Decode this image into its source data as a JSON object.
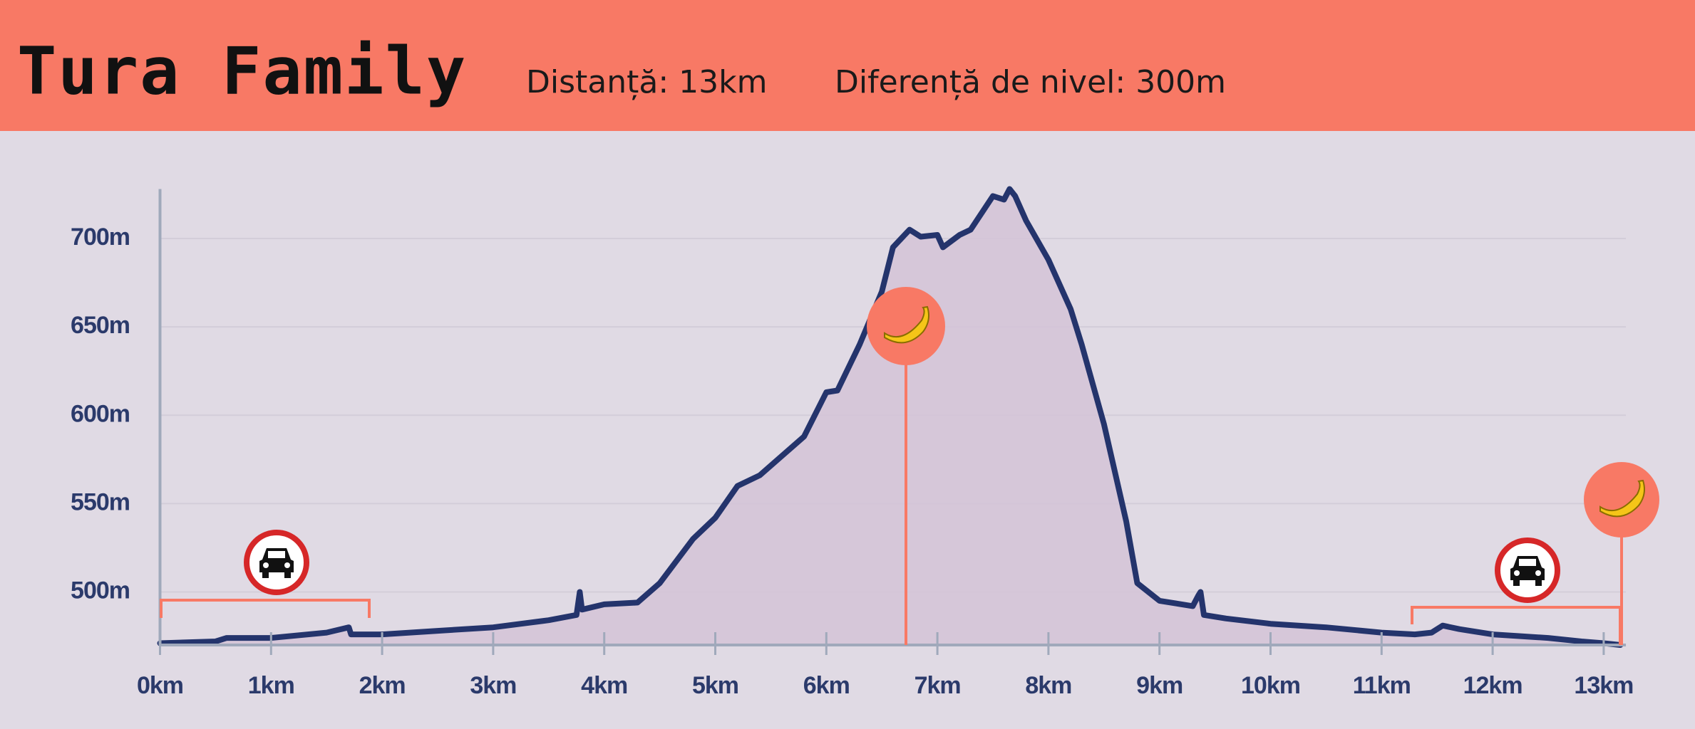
{
  "chart_data": {
    "type": "area",
    "title": "Tura Family",
    "subtitles": [
      "Distanță: 13km",
      "Diferență de nivel: 300m"
    ],
    "x": [
      0,
      0.5,
      0.6,
      1.0,
      1.5,
      1.7,
      1.72,
      2.0,
      2.5,
      3.0,
      3.5,
      3.75,
      3.78,
      3.8,
      4.0,
      4.3,
      4.5,
      4.8,
      5.0,
      5.2,
      5.4,
      5.6,
      5.8,
      6.0,
      6.1,
      6.3,
      6.5,
      6.6,
      6.75,
      6.85,
      7.0,
      7.05,
      7.2,
      7.3,
      7.5,
      7.6,
      7.65,
      7.7,
      7.8,
      8.0,
      8.2,
      8.3,
      8.5,
      8.7,
      8.8,
      9.0,
      9.3,
      9.35,
      9.37,
      9.4,
      9.6,
      10.0,
      10.5,
      11.0,
      11.3,
      11.45,
      11.55,
      11.7,
      12.0,
      12.5,
      12.8,
      13.0,
      13.15
    ],
    "values": [
      471,
      472,
      474,
      474,
      477,
      480,
      476,
      476,
      478,
      480,
      484,
      487,
      500,
      490,
      493,
      494,
      505,
      530,
      542,
      560,
      566,
      577,
      588,
      613,
      614,
      640,
      670,
      695,
      705,
      701,
      702,
      695,
      702,
      705,
      724,
      722,
      728,
      724,
      710,
      688,
      660,
      640,
      595,
      540,
      505,
      495,
      492,
      498,
      500,
      487,
      485,
      482,
      480,
      477,
      476,
      477,
      481,
      479,
      476,
      474,
      472,
      471,
      470
    ],
    "color": "#24346c",
    "fill_color": "#d3c3d7",
    "xlim": [
      0,
      13.2
    ],
    "ylim": [
      470,
      728
    ],
    "xticks": [
      {
        "value": 0,
        "label": "0km"
      },
      {
        "value": 1,
        "label": "1km"
      },
      {
        "value": 2,
        "label": "2km"
      },
      {
        "value": 3,
        "label": "3km"
      },
      {
        "value": 4,
        "label": "4km"
      },
      {
        "value": 5,
        "label": "5km"
      },
      {
        "value": 6,
        "label": "6km"
      },
      {
        "value": 7,
        "label": "7km"
      },
      {
        "value": 8,
        "label": "8km"
      },
      {
        "value": 9,
        "label": "9km"
      },
      {
        "value": 10,
        "label": "10km"
      },
      {
        "value": 11,
        "label": "11km"
      },
      {
        "value": 12,
        "label": "12km"
      },
      {
        "value": 13,
        "label": "13km"
      }
    ],
    "yticks": [
      {
        "value": 500,
        "label": "500m"
      },
      {
        "value": 550,
        "label": "550m"
      },
      {
        "value": 600,
        "label": "600m"
      },
      {
        "value": 650,
        "label": "650m"
      },
      {
        "value": 700,
        "label": "700m"
      }
    ],
    "grid": true
  }
}
